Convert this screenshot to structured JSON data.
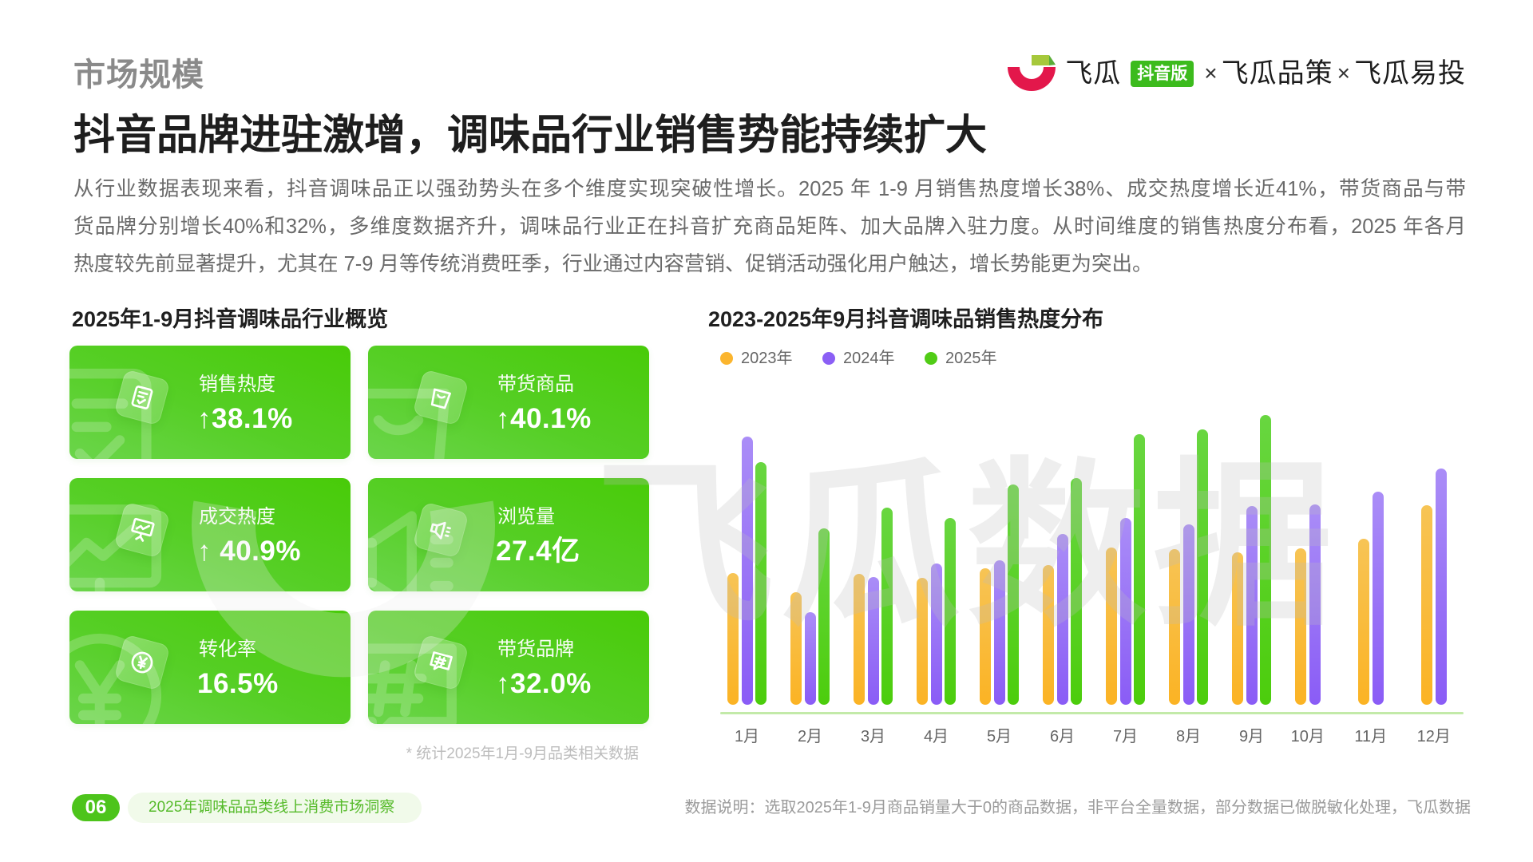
{
  "header": {
    "section_label": "市场规模",
    "headline": "抖音品牌进驻激增，调味品行业销售势能持续扩大",
    "paragraph_lines": [
      "从行业数据表现来看，抖音调味品正以强劲势头在多个维度实现突破性增长。2025 年 1-9 月销售热度增长38%、成交热度增长近41%，带货商品与带",
      "货品牌分别增长40%和32%，多维度数据齐升，调味品行业正在抖音扩充商品矩阵、加大品牌入驻力度。从时间维度的销售热度分布看，2025 年各月",
      "热度较先前显著提升，尤其在 7-9 月等传统消费旺季，行业通过内容营销、促销活动强化用户触达，增长势能更为突出。"
    ]
  },
  "logo": {
    "icon": "feigua-logo-icon",
    "brand": "飞瓜",
    "badge": "抖音版",
    "separator": "×",
    "products": [
      "飞瓜品策",
      "飞瓜易投"
    ],
    "colors": {
      "mark_red": "#e3174b",
      "mark_green": "#a6c83b",
      "badge_bg": "#3cbb1d"
    }
  },
  "overview": {
    "title": "2025年1-9月抖音调味品行业概览",
    "cards": [
      {
        "label": "销售热度",
        "value": "↑38.1%",
        "icon": "clipboard-check-icon"
      },
      {
        "label": "带货商品",
        "value": "↑40.1%",
        "icon": "shopping-bag-icon"
      },
      {
        "label": "成交热度",
        "value": "↑ 40.9%",
        "icon": "presentation-chart-icon"
      },
      {
        "label": "浏览量",
        "value": "27.4亿",
        "icon": "megaphone-icon"
      },
      {
        "label": "转化率",
        "value": "16.5%",
        "icon": "yen-coin-icon"
      },
      {
        "label": "带货品牌",
        "value": "↑32.0%",
        "icon": "hashtag-ticket-icon"
      }
    ],
    "footnote": "* 统计2025年1月-9月品类相关数据",
    "card_colors": {
      "start": "#6bd54b",
      "end": "#48cb08"
    }
  },
  "chart": {
    "title": "2023-2025年9月抖音调味品销售热度分布",
    "legend": [
      {
        "label": "2023年",
        "color": "#fbb52e"
      },
      {
        "label": "2024年",
        "color": "#8b5ff5"
      },
      {
        "label": "2025年",
        "color": "#51cc16"
      }
    ],
    "baseline_color": "#c3eaa9"
  },
  "watermark": {
    "text": "飞瓜数据"
  },
  "footer": {
    "page_number": "06",
    "report_title": "2025年调味品品类线上消费市场洞察",
    "data_note": "数据说明：选取2025年1-9月商品销量大于0的商品数据，非平台全量数据，部分数据已做脱敏化处理，飞瓜数据"
  },
  "chart_data": {
    "type": "bar",
    "title": "2023-2025年9月抖音调味品销售热度分布",
    "xlabel": "",
    "ylabel": "",
    "categories": [
      "1月",
      "2月",
      "3月",
      "4月",
      "5月",
      "6月",
      "7月",
      "8月",
      "9月",
      "10月",
      "11月",
      "12月"
    ],
    "series": [
      {
        "id": "y2023",
        "name": "2023年",
        "color": "#fbb324",
        "color_top": "#f7c455",
        "values": [
          165,
          141,
          164,
          159,
          171,
          175,
          197,
          195,
          191,
          196,
          208,
          250
        ]
      },
      {
        "id": "y2024",
        "name": "2024年",
        "color": "#8a5cf6",
        "color_top": "#aa8df7",
        "values": [
          336,
          116,
          160,
          177,
          181,
          214,
          234,
          226,
          249,
          251,
          267,
          296
        ]
      },
      {
        "id": "y2025",
        "name": "2025年",
        "color": "#4ccd0c",
        "color_top": "#68d640",
        "values": [
          304,
          221,
          247,
          234,
          276,
          284,
          339,
          345,
          363,
          null,
          null,
          null
        ]
      }
    ],
    "ylim": [
      0,
      380
    ],
    "y_axis_visible": false,
    "grid": false,
    "legend_position": "top-left"
  }
}
